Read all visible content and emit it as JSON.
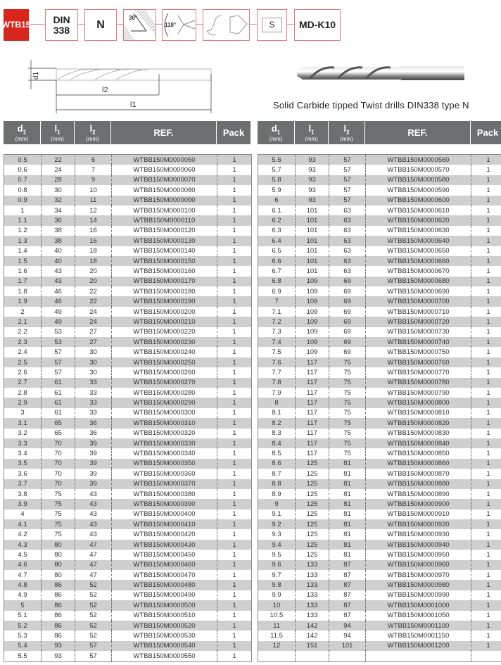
{
  "header": {
    "badges": [
      "WTB15",
      "DIN 338",
      "N",
      "30°",
      "118°",
      "",
      "S",
      "MD-K10"
    ]
  },
  "diagram": {
    "d1": "d1",
    "l1": "l1",
    "l2": "l2"
  },
  "caption": "Solid Carbide tipped Twist drills DIN338 type N",
  "columns": [
    {
      "label": "d",
      "sub": "1",
      "unit": "(mm)"
    },
    {
      "label": "l",
      "sub": "1",
      "unit": "(mm)"
    },
    {
      "label": "l",
      "sub": "2",
      "unit": "(mm)"
    },
    {
      "label": "REF.",
      "sub": "",
      "unit": ""
    },
    {
      "label": "Pack",
      "sub": "",
      "unit": ""
    }
  ],
  "left_rows": [
    [
      "0.5",
      "22",
      "6",
      "WTBB150M0000050",
      "1"
    ],
    [
      "0.6",
      "24",
      "7",
      "WTBB150M0000060",
      "1"
    ],
    [
      "0.7",
      "28",
      "9",
      "WTBB150M0000070",
      "1"
    ],
    [
      "0.8",
      "30",
      "10",
      "WTBB150M0000080",
      "1"
    ],
    [
      "0.9",
      "32",
      "11",
      "WTBB150M0000090",
      "1"
    ],
    [
      "1",
      "34",
      "12",
      "WTBB150M0000100",
      "1"
    ],
    [
      "1.1",
      "36",
      "14",
      "WTBB150M0000110",
      "1"
    ],
    [
      "1.2",
      "38",
      "16",
      "WTBB150M0000120",
      "1"
    ],
    [
      "1.3",
      "38",
      "16",
      "WTBB150M0000130",
      "1"
    ],
    [
      "1.4",
      "40",
      "18",
      "WTBB150M0000140",
      "1"
    ],
    [
      "1.5",
      "40",
      "18",
      "WTBB150M0000150",
      "1"
    ],
    [
      "1.6",
      "43",
      "20",
      "WTBB150M0000160",
      "1"
    ],
    [
      "1.7",
      "43",
      "20",
      "WTBB150M0000170",
      "1"
    ],
    [
      "1.8",
      "46",
      "22",
      "WTBB150M0000180",
      "1"
    ],
    [
      "1.9",
      "46",
      "22",
      "WTBB150M0000190",
      "1"
    ],
    [
      "2",
      "49",
      "24",
      "WTBB150M0000200",
      "1"
    ],
    [
      "2.1",
      "49",
      "24",
      "WTBB150M0000210",
      "1"
    ],
    [
      "2.2",
      "53",
      "27",
      "WTBB150M0000220",
      "1"
    ],
    [
      "2.3",
      "53",
      "27",
      "WTBB150M0000230",
      "1"
    ],
    [
      "2.4",
      "57",
      "30",
      "WTBB150M0000240",
      "1"
    ],
    [
      "2.5",
      "57",
      "30",
      "WTBB150M0000250",
      "1"
    ],
    [
      "2.6",
      "57",
      "30",
      "WTBB150M0000260",
      "1"
    ],
    [
      "2.7",
      "61",
      "33",
      "WTBB150M0000270",
      "1"
    ],
    [
      "2.8",
      "61",
      "33",
      "WTBB150M0000280",
      "1"
    ],
    [
      "2.9",
      "61",
      "33",
      "WTBB150M0000290",
      "1"
    ],
    [
      "3",
      "61",
      "33",
      "WTBB150M0000300",
      "1"
    ],
    [
      "3.1",
      "65",
      "36",
      "WTBB150M0000310",
      "1"
    ],
    [
      "3.2",
      "65",
      "36",
      "WTBB150M0000320",
      "1"
    ],
    [
      "3.3",
      "70",
      "39",
      "WTBB150M0000330",
      "1"
    ],
    [
      "3.4",
      "70",
      "39",
      "WTBB150M0000340",
      "1"
    ],
    [
      "3.5",
      "70",
      "39",
      "WTBB150M0000350",
      "1"
    ],
    [
      "3.6",
      "70",
      "39",
      "WTBB150M0000360",
      "1"
    ],
    [
      "3.7",
      "70",
      "39",
      "WTBB150M0000370",
      "1"
    ],
    [
      "3.8",
      "75",
      "43",
      "WTBB150M0000380",
      "1"
    ],
    [
      "3.9",
      "75",
      "43",
      "WTBB150M0000390",
      "1"
    ],
    [
      "4",
      "75",
      "43",
      "WTBB150M0000400",
      "1"
    ],
    [
      "4.1",
      "75",
      "43",
      "WTBB150M0000410",
      "1"
    ],
    [
      "4.2",
      "75",
      "43",
      "WTBB150M0000420",
      "1"
    ],
    [
      "4.3",
      "80",
      "47",
      "WTBB150M0000430",
      "1"
    ],
    [
      "4.5",
      "80",
      "47",
      "WTBB150M0000450",
      "1"
    ],
    [
      "4.6",
      "80",
      "47",
      "WTBB150M0000460",
      "1"
    ],
    [
      "4.7",
      "80",
      "47",
      "WTBB150M0000470",
      "1"
    ],
    [
      "4.8",
      "86",
      "52",
      "WTBB150M0000480",
      "1"
    ],
    [
      "4.9",
      "86",
      "52",
      "WTBB150M0000490",
      "1"
    ],
    [
      "5",
      "86",
      "52",
      "WTBB150M0000500",
      "1"
    ],
    [
      "5.1",
      "86",
      "52",
      "WTBB150M0000510",
      "1"
    ],
    [
      "5.2",
      "86",
      "52",
      "WTBB150M0000520",
      "1"
    ],
    [
      "5.3",
      "86",
      "52",
      "WTBB150M0000530",
      "1"
    ],
    [
      "5.4",
      "93",
      "57",
      "WTBB150M0000540",
      "1"
    ],
    [
      "5.5",
      "93",
      "57",
      "WTBB150M0000550",
      "1"
    ]
  ],
  "right_rows": [
    [
      "5.6",
      "93",
      "57",
      "WTBB150M0000560",
      "1"
    ],
    [
      "5.7",
      "93",
      "57",
      "WTBB150M0000570",
      "1"
    ],
    [
      "5.8",
      "93",
      "57",
      "WTBB150M0000580",
      "1"
    ],
    [
      "5.9",
      "93",
      "57",
      "WTBB150M0000590",
      "1"
    ],
    [
      "6",
      "93",
      "57",
      "WTBB150M0000600",
      "1"
    ],
    [
      "6.1",
      "101",
      "63",
      "WTBB150M0000610",
      "1"
    ],
    [
      "6.2",
      "101",
      "63",
      "WTBB150M0000620",
      "1"
    ],
    [
      "6.3",
      "101",
      "63",
      "WTBB150M0000630",
      "1"
    ],
    [
      "6.4",
      "101",
      "63",
      "WTBB150M0000640",
      "1"
    ],
    [
      "6.5",
      "101",
      "63",
      "WTBB150M0000650",
      "1"
    ],
    [
      "6.6",
      "101",
      "63",
      "WTBB150M0000660",
      "1"
    ],
    [
      "6.7",
      "101",
      "63",
      "WTBB150M0000670",
      "1"
    ],
    [
      "6.8",
      "109",
      "69",
      "WTBB150M0000680",
      "1"
    ],
    [
      "6.9",
      "109",
      "69",
      "WTBB150M0000690",
      "1"
    ],
    [
      "7",
      "109",
      "69",
      "WTBB150M0000700",
      "1"
    ],
    [
      "7.1",
      "109",
      "69",
      "WTBB150M0000710",
      "1"
    ],
    [
      "7.2",
      "109",
      "69",
      "WTBB150M0000720",
      "1"
    ],
    [
      "7.3",
      "109",
      "69",
      "WTBB150M0000730",
      "1"
    ],
    [
      "7.4",
      "109",
      "69",
      "WTBB150M0000740",
      "1"
    ],
    [
      "7.5",
      "109",
      "69",
      "WTBB150M0000750",
      "1"
    ],
    [
      "7.6",
      "117",
      "75",
      "WTBB150M0000760",
      "1"
    ],
    [
      "7.7",
      "117",
      "75",
      "WTBB150M0000770",
      "1"
    ],
    [
      "7.8",
      "117",
      "75",
      "WTBB150M0000780",
      "1"
    ],
    [
      "7.9",
      "117",
      "75",
      "WTBB150M0000790",
      "1"
    ],
    [
      "8",
      "117",
      "75",
      "WTBB150M0000800",
      "1"
    ],
    [
      "8.1",
      "117",
      "75",
      "WTBB150M0000810",
      "1"
    ],
    [
      "8.2",
      "117",
      "75",
      "WTBB150M0000820",
      "1"
    ],
    [
      "8.3",
      "117",
      "75",
      "WTBB150M0000830",
      "1"
    ],
    [
      "8.4",
      "117",
      "75",
      "WTBB150M0000840",
      "1"
    ],
    [
      "8.5",
      "117",
      "75",
      "WTBB150M0000850",
      "1"
    ],
    [
      "8.6",
      "125",
      "81",
      "WTBB150M0000860",
      "1"
    ],
    [
      "8.7",
      "125",
      "81",
      "WTBB150M0000870",
      "1"
    ],
    [
      "8.8",
      "125",
      "81",
      "WTBB150M0000880",
      "1"
    ],
    [
      "8.9",
      "125",
      "81",
      "WTBB150M0000890",
      "1"
    ],
    [
      "9",
      "125",
      "81",
      "WTBB150M0000900",
      "1"
    ],
    [
      "9.1",
      "125",
      "81",
      "WTBB150M0000910",
      "1"
    ],
    [
      "9.2",
      "125",
      "81",
      "WTBB150M0000920",
      "1"
    ],
    [
      "9.3",
      "125",
      "81",
      "WTBB150M0000930",
      "1"
    ],
    [
      "9.4",
      "125",
      "81",
      "WTBB150M0000940",
      "1"
    ],
    [
      "9.5",
      "125",
      "81",
      "WTBB150M0000950",
      "1"
    ],
    [
      "9.6",
      "133",
      "87",
      "WTBB150M0000960",
      "1"
    ],
    [
      "9.7",
      "133",
      "87",
      "WTBB150M0000970",
      "1"
    ],
    [
      "9.8",
      "133",
      "87",
      "WTBB150M0000980",
      "1"
    ],
    [
      "9.9",
      "133",
      "87",
      "WTBB150M0000990",
      "1"
    ],
    [
      "10",
      "133",
      "87",
      "WTBB150M0001000",
      "1"
    ],
    [
      "10.5",
      "133",
      "87",
      "WTBB150M0001050",
      "1"
    ],
    [
      "11",
      "142",
      "94",
      "WTBB150M0001100",
      "1"
    ],
    [
      "11.5",
      "142",
      "94",
      "WTBB150M0001150",
      "1"
    ],
    [
      "12",
      "151",
      "101",
      "WTBB150M0001200",
      "1"
    ],
    [
      "",
      "",
      "",
      "",
      ""
    ]
  ],
  "colors": {
    "brand_red": "#d9261c",
    "header_gray": "#6d6e70",
    "stripe": "#cfcfd0"
  }
}
